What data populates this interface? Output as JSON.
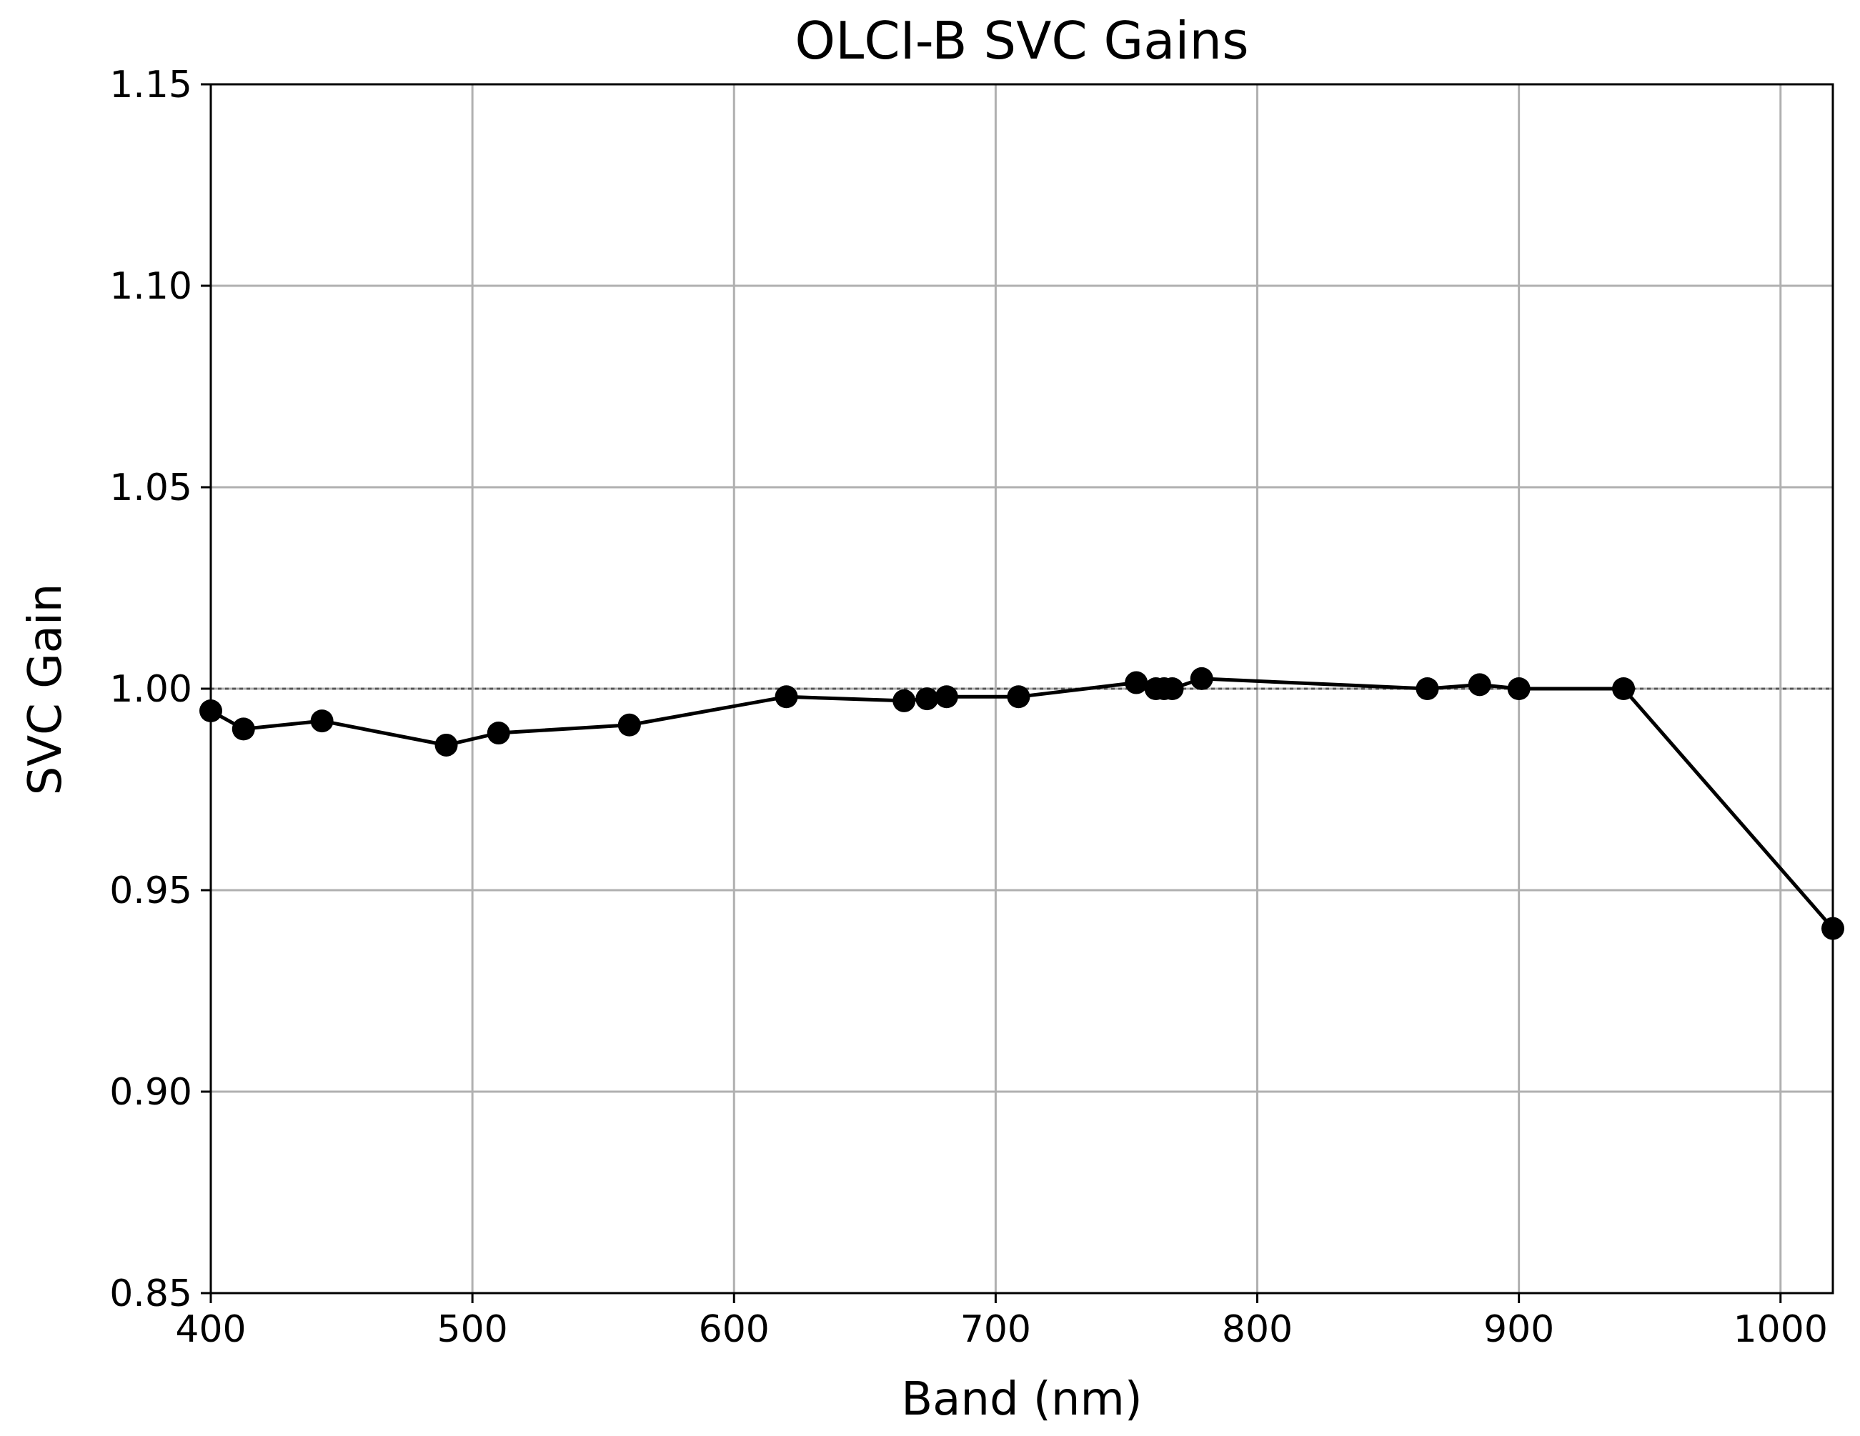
{
  "chart_data": {
    "type": "line",
    "title": "OLCI-B SVC Gains",
    "xlabel": "Band (nm)",
    "ylabel": "SVC Gain",
    "xlim": [
      400,
      1020
    ],
    "ylim": [
      0.85,
      1.15
    ],
    "grid": true,
    "xticks": [
      {
        "value": 400,
        "label": "400"
      },
      {
        "value": 500,
        "label": "500"
      },
      {
        "value": 600,
        "label": "600"
      },
      {
        "value": 700,
        "label": "700"
      },
      {
        "value": 800,
        "label": "800"
      },
      {
        "value": 900,
        "label": "900"
      },
      {
        "value": 1000,
        "label": "1000"
      }
    ],
    "yticks": [
      {
        "value": 0.85,
        "label": "0.85"
      },
      {
        "value": 0.9,
        "label": "0.90"
      },
      {
        "value": 0.95,
        "label": "0.95"
      },
      {
        "value": 1.0,
        "label": "1.00"
      },
      {
        "value": 1.05,
        "label": "1.05"
      },
      {
        "value": 1.1,
        "label": "1.10"
      },
      {
        "value": 1.15,
        "label": "1.15"
      }
    ],
    "reference_line": {
      "y": 1.0,
      "style": "dotted",
      "color": "#555555"
    },
    "series": [
      {
        "name": "SVC Gain",
        "color": "#000000",
        "marker": "circle",
        "x": [
          400,
          412.5,
          442.5,
          490,
          510,
          560,
          620,
          665,
          673.75,
          681.25,
          708.75,
          753.75,
          761.25,
          764.375,
          767.5,
          778.75,
          865,
          885,
          900,
          940,
          1020
        ],
        "y": [
          0.9945,
          0.99,
          0.992,
          0.986,
          0.989,
          0.991,
          0.998,
          0.997,
          0.9975,
          0.998,
          0.998,
          1.0015,
          1.0,
          1.0,
          1.0,
          1.0025,
          1.0,
          1.001,
          1.0,
          1.0,
          0.9405
        ]
      }
    ]
  }
}
